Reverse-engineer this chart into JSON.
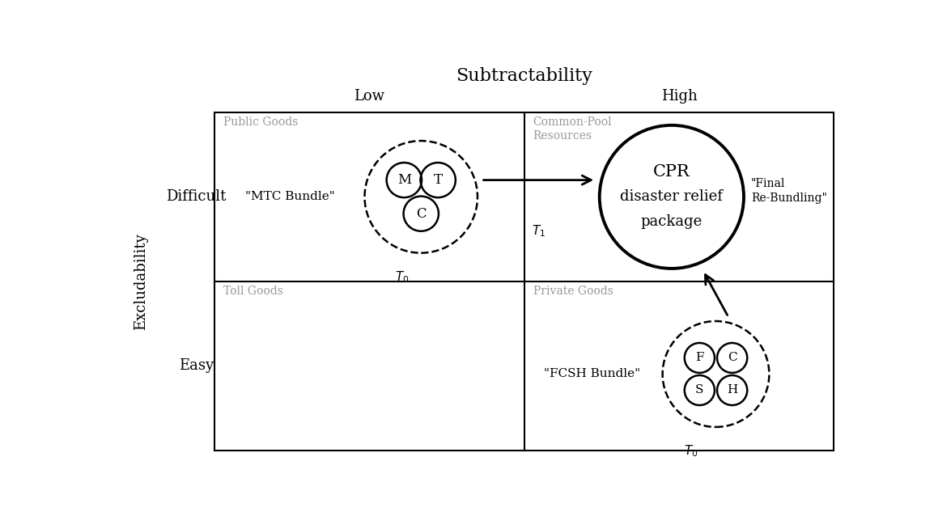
{
  "title": "Subtractability",
  "ylabel": "Excludability",
  "col_labels": [
    "Low",
    "High"
  ],
  "row_labels": [
    "Difficult",
    "Easy"
  ],
  "background_color": "#ffffff",
  "text_color": "#000000",
  "gray_color": "#999999",
  "fig_width": 11.75,
  "fig_height": 6.54,
  "dpi": 100
}
